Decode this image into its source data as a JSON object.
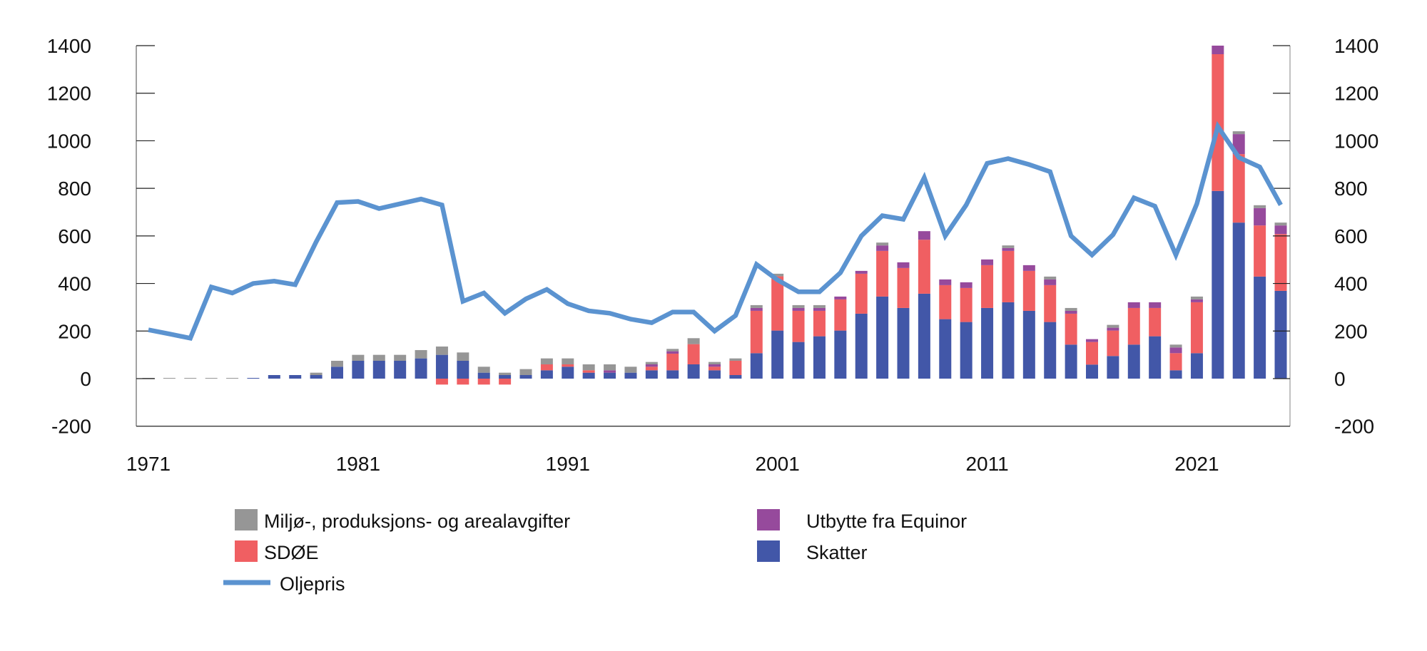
{
  "chart_data": {
    "type": "bar",
    "stacked": true,
    "title": "",
    "xlabel": "",
    "ylabel": "",
    "ylim": [
      -200,
      1400
    ],
    "y2lim": [
      -200,
      1400
    ],
    "yticks": [
      "-200",
      "0",
      "200",
      "400",
      "600",
      "800",
      "1000",
      "1200",
      "1400"
    ],
    "xtick_labels": [
      "1971",
      "1981",
      "1991",
      "2001",
      "2011",
      "2021"
    ],
    "grid": false,
    "legend_position": "bottom",
    "categories": [
      1971,
      1972,
      1973,
      1974,
      1975,
      1976,
      1977,
      1978,
      1979,
      1980,
      1981,
      1982,
      1983,
      1984,
      1985,
      1986,
      1987,
      1988,
      1989,
      1990,
      1991,
      1992,
      1993,
      1994,
      1995,
      1996,
      1997,
      1998,
      1999,
      2000,
      2001,
      2002,
      2003,
      2004,
      2005,
      2006,
      2007,
      2008,
      2009,
      2010,
      2011,
      2012,
      2013,
      2014,
      2015,
      2016,
      2017,
      2018,
      2019,
      2020,
      2021,
      2022,
      2023,
      2024,
      2025
    ],
    "series": [
      {
        "name": "Skatter",
        "kind": "bar",
        "color": "#4257a8",
        "values": [
          0,
          0,
          0,
          0,
          0,
          3,
          15,
          15,
          15,
          50,
          75,
          75,
          75,
          85,
          100,
          75,
          25,
          15,
          15,
          35,
          50,
          25,
          25,
          25,
          35,
          35,
          60,
          35,
          15,
          107,
          202,
          154,
          178,
          202,
          273,
          345,
          297,
          357,
          250,
          238,
          297,
          321,
          285,
          238,
          143,
          59,
          95,
          143,
          178,
          35,
          107,
          789,
          656,
          429,
          369
        ]
      },
      {
        "name": "SDØE",
        "kind": "bar",
        "color": "#f05f62",
        "values": [
          0,
          0,
          0,
          0,
          0,
          0,
          0,
          0,
          0,
          0,
          0,
          0,
          0,
          0,
          -25,
          -25,
          -25,
          -25,
          0,
          25,
          10,
          10,
          0,
          0,
          15,
          70,
          85,
          15,
          60,
          178,
          228,
          131,
          107,
          131,
          168,
          192,
          168,
          227,
          143,
          143,
          180,
          216,
          168,
          155,
          130,
          95,
          107,
          154,
          119,
          72,
          214,
          575,
          288,
          215,
          239
        ]
      },
      {
        "name": "Utbytte fra Equinor",
        "kind": "bar",
        "color": "#964a9c",
        "values": [
          0,
          0,
          0,
          0,
          0,
          0,
          0,
          0,
          0,
          0,
          0,
          0,
          0,
          0,
          0,
          0,
          0,
          0,
          0,
          0,
          0,
          0,
          10,
          0,
          10,
          10,
          0,
          10,
          0,
          12,
          0,
          12,
          12,
          12,
          12,
          23,
          24,
          36,
          24,
          24,
          24,
          12,
          24,
          24,
          12,
          12,
          12,
          24,
          24,
          24,
          12,
          36,
          84,
          73,
          36
        ]
      },
      {
        "name": "Miljø-, produksjons- og arealavgifter",
        "kind": "bar",
        "color": "#969696",
        "values": [
          3,
          3,
          3,
          3,
          3,
          0,
          0,
          0,
          10,
          25,
          25,
          25,
          25,
          35,
          35,
          35,
          25,
          10,
          25,
          25,
          25,
          25,
          25,
          25,
          10,
          10,
          25,
          10,
          10,
          12,
          11,
          12,
          12,
          0,
          0,
          12,
          0,
          0,
          0,
          0,
          0,
          11,
          0,
          12,
          12,
          0,
          12,
          0,
          0,
          12,
          12,
          0,
          12,
          12,
          12
        ]
      },
      {
        "name": "Oljepris",
        "kind": "line",
        "color": "#5b93d0",
        "values": [
          205,
          188,
          170,
          385,
          360,
          400,
          410,
          395,
          575,
          740,
          745,
          715,
          735,
          755,
          730,
          325,
          360,
          275,
          335,
          375,
          315,
          285,
          275,
          250,
          235,
          280,
          280,
          200,
          265,
          480,
          415,
          365,
          365,
          445,
          600,
          685,
          670,
          845,
          600,
          730,
          905,
          925,
          900,
          870,
          600,
          520,
          605,
          760,
          725,
          520,
          735,
          1060,
          930,
          890,
          730
        ]
      }
    ],
    "legend": [
      {
        "label": "Miljø-, produksjons- og arealavgifter",
        "color": "#969696",
        "shape": "square"
      },
      {
        "label": "Utbytte fra Equinor",
        "color": "#964a9c",
        "shape": "square"
      },
      {
        "label": "SDØE",
        "color": "#f05f62",
        "shape": "square"
      },
      {
        "label": "Skatter",
        "color": "#4257a8",
        "shape": "square"
      },
      {
        "label": "Oljepris",
        "color": "#5b93d0",
        "shape": "line"
      }
    ]
  }
}
